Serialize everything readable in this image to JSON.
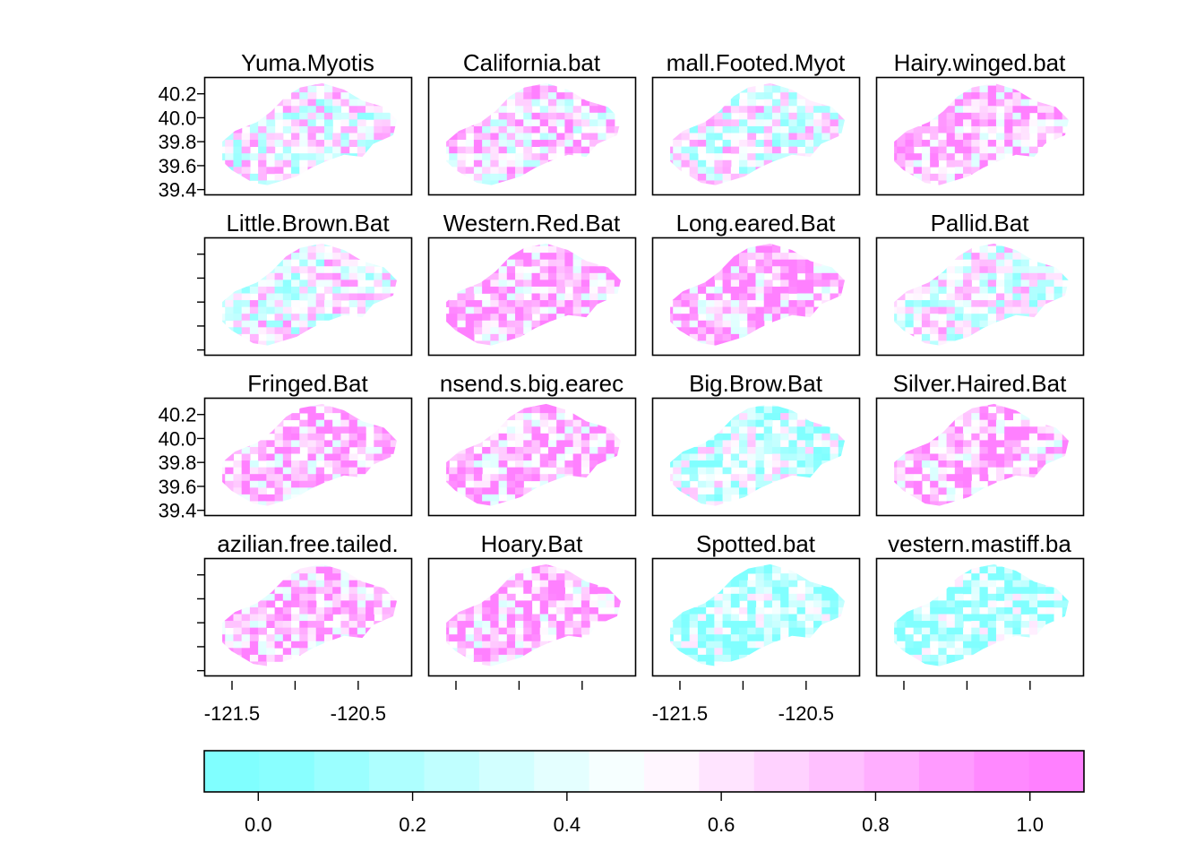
{
  "chart_data": {
    "type": "heatmap",
    "layout": {
      "rows": 4,
      "cols": 4
    },
    "panels": [
      {
        "title": "Yuma.Myotis",
        "dominant": "mixed"
      },
      {
        "title": "California.bat",
        "dominant": "pink-light"
      },
      {
        "title": "mall.Footed.Myot",
        "dominant": "mixed"
      },
      {
        "title": "Hairy.winged.bat",
        "dominant": "pink"
      },
      {
        "title": "Little.Brown.Bat",
        "dominant": "mixed"
      },
      {
        "title": "Western.Red.Bat",
        "dominant": "pink"
      },
      {
        "title": "Long.eared.Bat",
        "dominant": "pink"
      },
      {
        "title": "Pallid.Bat",
        "dominant": "mixed"
      },
      {
        "title": "Fringed.Bat",
        "dominant": "pink"
      },
      {
        "title": "nsend.s.big.earec",
        "dominant": "pink"
      },
      {
        "title": "Big.Brow.Bat",
        "dominant": "cyan-light"
      },
      {
        "title": "Silver.Haired.Bat",
        "dominant": "pink"
      },
      {
        "title": "azilian.free.tailed.",
        "dominant": "pink"
      },
      {
        "title": "Hoary.Bat",
        "dominant": "pink"
      },
      {
        "title": "Spotted.bat",
        "dominant": "cyan"
      },
      {
        "title": "vestern.mastiff.ba",
        "dominant": "cyan"
      }
    ],
    "y_axis": {
      "ticks": [
        "40.2",
        "40.0",
        "39.8",
        "39.6",
        "39.4"
      ],
      "range": [
        39.36,
        40.34
      ]
    },
    "x_axis": {
      "ticks": [
        "-121.5",
        "-120.5"
      ],
      "minor_ticks": [
        -121.5,
        -121.0,
        -120.5
      ],
      "range": [
        -121.72,
        -120.08
      ]
    },
    "colorkey": {
      "ticks": [
        "0.0",
        "0.2",
        "0.4",
        "0.6",
        "0.8",
        "1.0"
      ],
      "range": [
        -0.07,
        1.07
      ],
      "low_color": "#80FFFF",
      "mid_color": "#FFFFFF",
      "high_color": "#FF80FF",
      "bins": 16
    }
  }
}
